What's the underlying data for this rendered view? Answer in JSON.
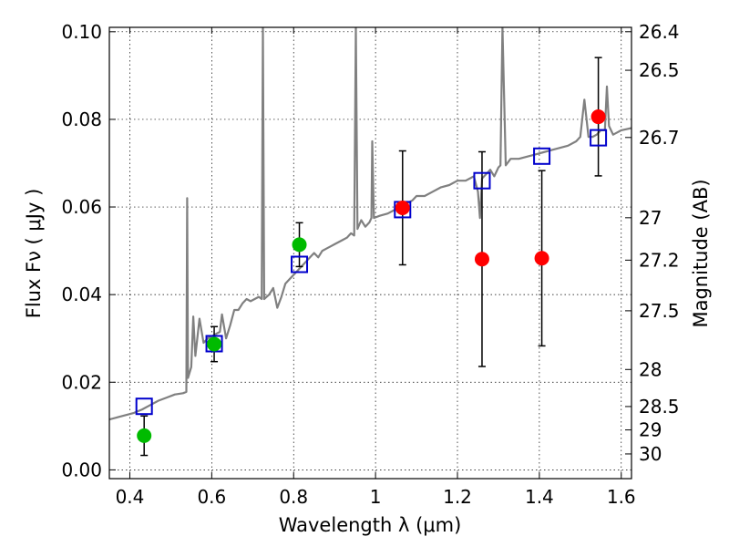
{
  "chart_data": {
    "type": "scatter",
    "title": "",
    "xlabel": "Wavelength  λ (μm)",
    "ylabel": "Flux  Fν  ( μJy )",
    "y2label": "Magnitude (AB)",
    "xlim": [
      0.35,
      1.625
    ],
    "ylim": [
      -0.002,
      0.101
    ],
    "grid": true,
    "x_ticks": [
      {
        "value": 0.4,
        "label": "0.4"
      },
      {
        "value": 0.6,
        "label": "0.6"
      },
      {
        "value": 0.8,
        "label": "0.8"
      },
      {
        "value": 1.0,
        "label": "1"
      },
      {
        "value": 1.2,
        "label": "1.2"
      },
      {
        "value": 1.4,
        "label": "1.4"
      },
      {
        "value": 1.6,
        "label": "1.6"
      }
    ],
    "y_ticks": [
      {
        "value": 0.0,
        "label": "0.00"
      },
      {
        "value": 0.02,
        "label": "0.02"
      },
      {
        "value": 0.04,
        "label": "0.04"
      },
      {
        "value": 0.06,
        "label": "0.06"
      },
      {
        "value": 0.08,
        "label": "0.08"
      },
      {
        "value": 0.1,
        "label": "0.10"
      }
    ],
    "mag_ticks": [
      {
        "value": 26.4,
        "label": "26.4"
      },
      {
        "value": 26.5,
        "label": "26.5"
      },
      {
        "value": 26.7,
        "label": "26.7"
      },
      {
        "value": 27.0,
        "label": "27"
      },
      {
        "value": 27.2,
        "label": "27.2"
      },
      {
        "value": 27.5,
        "label": "27.5"
      },
      {
        "value": 28.0,
        "label": "28"
      },
      {
        "value": 28.5,
        "label": "28.5"
      },
      {
        "value": 29.0,
        "label": "29"
      },
      {
        "value": 30.0,
        "label": "30"
      }
    ],
    "colors": {
      "spectrum": "#808080",
      "green_points": "#00bb00",
      "red_points": "#ff0000",
      "model_squares": "#0000cc",
      "errorbars": "#000000"
    },
    "series": [
      {
        "kind": "observed-optical",
        "marker": "circle",
        "color": "#00bb00",
        "points": [
          {
            "x": 0.435,
            "y": 0.0078,
            "err_low": 0.0045,
            "err_high": 0.0045
          },
          {
            "x": 0.606,
            "y": 0.0287,
            "err_low": 0.004,
            "err_high": 0.004
          },
          {
            "x": 0.814,
            "y": 0.0514,
            "err_low": 0.005,
            "err_high": 0.005
          }
        ]
      },
      {
        "kind": "observed-infrared",
        "marker": "circle",
        "color": "#ff0000",
        "points": [
          {
            "x": 1.066,
            "y": 0.0598,
            "err_low": 0.013,
            "err_high": 0.013
          },
          {
            "x": 1.26,
            "y": 0.0481,
            "err_low": 0.0245,
            "err_high": 0.0245
          },
          {
            "x": 1.406,
            "y": 0.0483,
            "err_low": 0.02,
            "err_high": 0.02
          },
          {
            "x": 1.544,
            "y": 0.0806,
            "err_low": 0.0135,
            "err_high": 0.0135
          }
        ]
      },
      {
        "kind": "model-photometry",
        "marker": "square-open",
        "color": "#0000cc",
        "points": [
          {
            "x": 0.435,
            "y": 0.0145
          },
          {
            "x": 0.606,
            "y": 0.0288
          },
          {
            "x": 0.814,
            "y": 0.0469
          },
          {
            "x": 1.066,
            "y": 0.0594
          },
          {
            "x": 1.26,
            "y": 0.066
          },
          {
            "x": 1.406,
            "y": 0.0716
          },
          {
            "x": 1.544,
            "y": 0.0758
          }
        ]
      },
      {
        "kind": "model-spectrum",
        "marker": "line",
        "color": "#808080",
        "points": [
          [
            0.35,
            0.0115
          ],
          [
            0.37,
            0.012
          ],
          [
            0.39,
            0.0125
          ],
          [
            0.41,
            0.013
          ],
          [
            0.43,
            0.0138
          ],
          [
            0.45,
            0.0148
          ],
          [
            0.47,
            0.0158
          ],
          [
            0.49,
            0.0165
          ],
          [
            0.51,
            0.0172
          ],
          [
            0.53,
            0.0175
          ],
          [
            0.538,
            0.0178
          ],
          [
            0.54,
            0.062
          ],
          [
            0.542,
            0.021
          ],
          [
            0.55,
            0.0235
          ],
          [
            0.555,
            0.035
          ],
          [
            0.56,
            0.026
          ],
          [
            0.57,
            0.0345
          ],
          [
            0.58,
            0.029
          ],
          [
            0.59,
            0.03
          ],
          [
            0.6,
            0.0305
          ],
          [
            0.61,
            0.031
          ],
          [
            0.62,
            0.0315
          ],
          [
            0.625,
            0.0355
          ],
          [
            0.635,
            0.03
          ],
          [
            0.645,
            0.033
          ],
          [
            0.655,
            0.0365
          ],
          [
            0.665,
            0.0365
          ],
          [
            0.675,
            0.038
          ],
          [
            0.685,
            0.039
          ],
          [
            0.695,
            0.0385
          ],
          [
            0.705,
            0.039
          ],
          [
            0.715,
            0.0395
          ],
          [
            0.722,
            0.039
          ],
          [
            0.725,
            0.101
          ],
          [
            0.728,
            0.039
          ],
          [
            0.74,
            0.04
          ],
          [
            0.75,
            0.0415
          ],
          [
            0.76,
            0.037
          ],
          [
            0.77,
            0.0395
          ],
          [
            0.78,
            0.0425
          ],
          [
            0.79,
            0.0435
          ],
          [
            0.8,
            0.0445
          ],
          [
            0.81,
            0.0455
          ],
          [
            0.82,
            0.0465
          ],
          [
            0.83,
            0.0475
          ],
          [
            0.84,
            0.0485
          ],
          [
            0.85,
            0.0495
          ],
          [
            0.86,
            0.0485
          ],
          [
            0.87,
            0.05
          ],
          [
            0.88,
            0.0505
          ],
          [
            0.89,
            0.051
          ],
          [
            0.9,
            0.0515
          ],
          [
            0.91,
            0.052
          ],
          [
            0.92,
            0.0525
          ],
          [
            0.93,
            0.053
          ],
          [
            0.94,
            0.054
          ],
          [
            0.948,
            0.0535
          ],
          [
            0.952,
            0.101
          ],
          [
            0.956,
            0.055
          ],
          [
            0.965,
            0.057
          ],
          [
            0.975,
            0.0555
          ],
          [
            0.985,
            0.0565
          ],
          [
            0.99,
            0.0575
          ],
          [
            0.992,
            0.075
          ],
          [
            0.996,
            0.0575
          ],
          [
            1.01,
            0.058
          ],
          [
            1.03,
            0.0585
          ],
          [
            1.05,
            0.0595
          ],
          [
            1.07,
            0.0605
          ],
          [
            1.09,
            0.0615
          ],
          [
            1.1,
            0.0625
          ],
          [
            1.12,
            0.0625
          ],
          [
            1.14,
            0.0635
          ],
          [
            1.16,
            0.0645
          ],
          [
            1.18,
            0.065
          ],
          [
            1.2,
            0.066
          ],
          [
            1.22,
            0.066
          ],
          [
            1.24,
            0.067
          ],
          [
            1.25,
            0.0635
          ],
          [
            1.255,
            0.0575
          ],
          [
            1.26,
            0.0665
          ],
          [
            1.27,
            0.0675
          ],
          [
            1.28,
            0.0685
          ],
          [
            1.29,
            0.067
          ],
          [
            1.3,
            0.069
          ],
          [
            1.305,
            0.0695
          ],
          [
            1.31,
            0.101
          ],
          [
            1.318,
            0.0695
          ],
          [
            1.33,
            0.071
          ],
          [
            1.35,
            0.071
          ],
          [
            1.37,
            0.0715
          ],
          [
            1.39,
            0.072
          ],
          [
            1.41,
            0.0725
          ],
          [
            1.43,
            0.073
          ],
          [
            1.45,
            0.0735
          ],
          [
            1.47,
            0.074
          ],
          [
            1.49,
            0.075
          ],
          [
            1.5,
            0.076
          ],
          [
            1.51,
            0.0845
          ],
          [
            1.52,
            0.076
          ],
          [
            1.53,
            0.076
          ],
          [
            1.54,
            0.0765
          ],
          [
            1.55,
            0.0775
          ],
          [
            1.56,
            0.0775
          ],
          [
            1.565,
            0.0875
          ],
          [
            1.57,
            0.0785
          ],
          [
            1.58,
            0.0765
          ],
          [
            1.59,
            0.077
          ],
          [
            1.6,
            0.0775
          ],
          [
            1.625,
            0.078
          ]
        ]
      }
    ]
  }
}
